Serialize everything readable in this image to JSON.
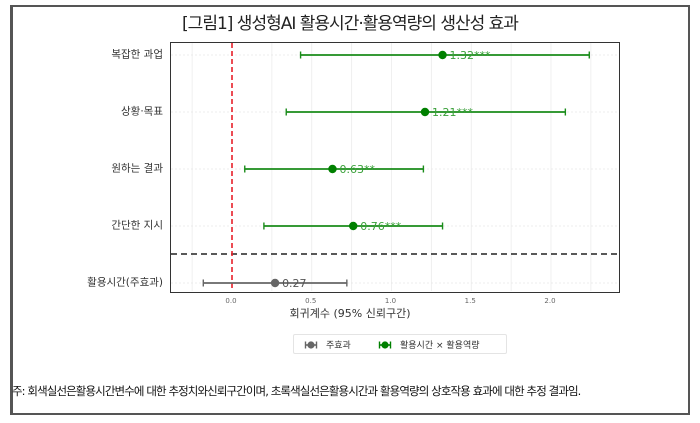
{
  "figure": {
    "title": "[그림1] 생성형AI 활용시간·활용역량의 생산성 효과",
    "note": "주: 회색실선은활용시간변수에 대한 추정치와신뢰구간이며, 초록색실선은활용시간과 활용역량의 상호작용 효과에 대한 추정 결과임."
  },
  "legend": {
    "items": [
      {
        "label": "주효과",
        "color": "#666666"
      },
      {
        "label": "활용시간 × 활용역량",
        "color": "#008000"
      }
    ]
  },
  "colors": {
    "interaction": "#1a8c1a",
    "main_effect": "#666666",
    "zero_line": "#e8202a",
    "separator": "#222222"
  },
  "chart_data": {
    "type": "scatter",
    "subtype": "forest-plot",
    "title": "[그림1] 생성형AI 활용시간·활용역량의 생산성 효과",
    "xlabel": "회귀계수 (95% 신뢰구간)",
    "ylabel": "",
    "xlim": [
      -0.38,
      2.45
    ],
    "x_ticks": [
      "0.0",
      "0.5",
      "1.0",
      "1.5",
      "2.0"
    ],
    "reference_line": {
      "x": 0.0,
      "style": "dashed",
      "color": "red"
    },
    "categories": [
      "복잡한 과업",
      "상황·목표",
      "원하는 결과",
      "간단한 지시",
      "활용시간(주효과)"
    ],
    "series": [
      {
        "name": "활용시간 × 활용역량",
        "color": "#008000",
        "points": [
          {
            "category": "복잡한 과업",
            "estimate": 1.32,
            "ci_low": 0.43,
            "ci_high": 2.24,
            "label": "1.32***"
          },
          {
            "category": "상황·목표",
            "estimate": 1.21,
            "ci_low": 0.34,
            "ci_high": 2.09,
            "label": "1.21***"
          },
          {
            "category": "원하는 결과",
            "estimate": 0.63,
            "ci_low": 0.08,
            "ci_high": 1.2,
            "label": "0.63**"
          },
          {
            "category": "간단한 지시",
            "estimate": 0.76,
            "ci_low": 0.2,
            "ci_high": 1.32,
            "label": "0.76***"
          }
        ]
      },
      {
        "name": "주효과",
        "color": "#666666",
        "points": [
          {
            "category": "활용시간(주효과)",
            "estimate": 0.27,
            "ci_low": -0.18,
            "ci_high": 0.72,
            "label": "0.27"
          }
        ]
      }
    ],
    "separator": {
      "between": [
        "간단한 지시",
        "활용시간(주효과)"
      ],
      "style": "dashed"
    },
    "grid": true,
    "legend_position": "bottom"
  }
}
